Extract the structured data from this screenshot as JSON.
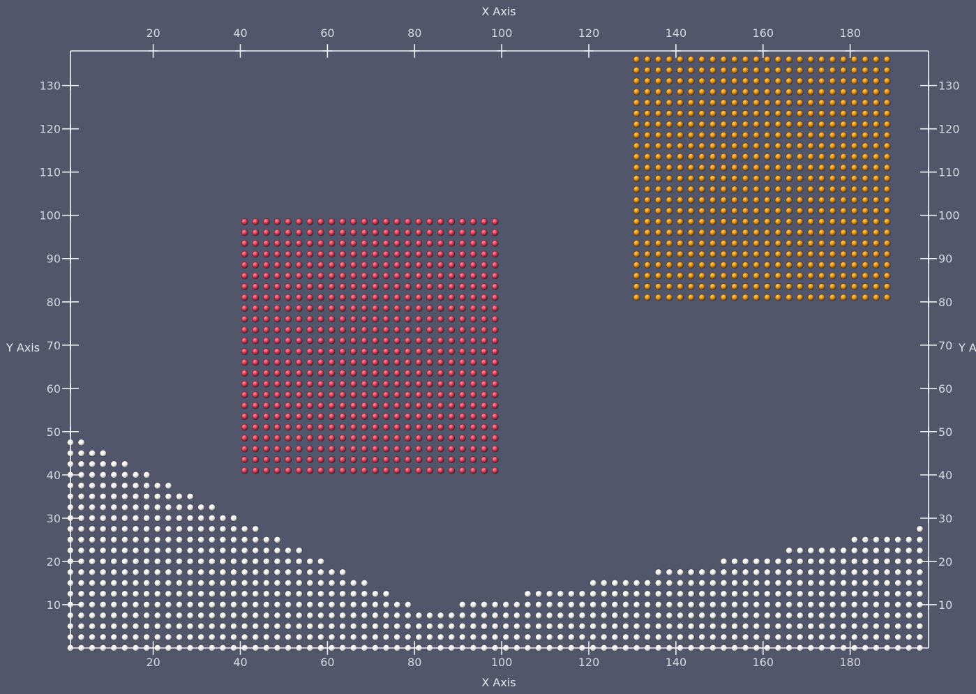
{
  "chart_data": {
    "type": "scatter",
    "title": "",
    "xlabel": "X Axis",
    "ylabel": "Y Axis",
    "xlim": [
      1,
      198
    ],
    "ylim": [
      0,
      138
    ],
    "x_ticks": [
      20,
      40,
      60,
      80,
      100,
      120,
      140,
      160,
      180
    ],
    "y_ticks": [
      10,
      20,
      30,
      40,
      50,
      60,
      70,
      80,
      90,
      100,
      110,
      120,
      130
    ],
    "background_color": "#52566b",
    "axis_color": "#f2f2f4",
    "series": [
      {
        "kind": "grid",
        "color": "#e2405a",
        "x_range": [
          41,
          99
        ],
        "y_range": [
          41,
          99
        ],
        "step": 2.5
      },
      {
        "kind": "grid",
        "color": "#eb9410",
        "x_range": [
          131,
          189
        ],
        "y_range": [
          81,
          138
        ],
        "step": 2.5
      },
      {
        "kind": "terrain",
        "color": "#f4f4f2",
        "x_range": [
          1,
          198
        ],
        "step": 2.5,
        "profile_x": [
          1,
          4,
          9,
          14,
          19,
          24,
          29,
          34,
          39,
          44,
          49,
          54,
          59,
          64,
          69,
          74,
          79,
          84,
          89,
          94,
          99,
          104,
          109,
          114,
          119,
          124,
          129,
          134,
          139,
          144,
          149,
          154,
          159,
          164,
          169,
          174,
          179,
          184,
          189,
          194,
          198
        ],
        "profile_top": [
          49,
          46,
          44,
          41,
          39,
          36,
          33,
          31,
          29,
          26,
          24,
          21,
          19,
          16,
          14,
          11,
          9,
          9,
          11,
          11,
          11,
          14,
          14,
          14,
          16,
          16,
          16,
          19,
          19,
          19,
          21,
          21,
          21,
          24,
          24,
          24,
          26,
          26,
          26,
          29,
          29
        ]
      }
    ]
  }
}
